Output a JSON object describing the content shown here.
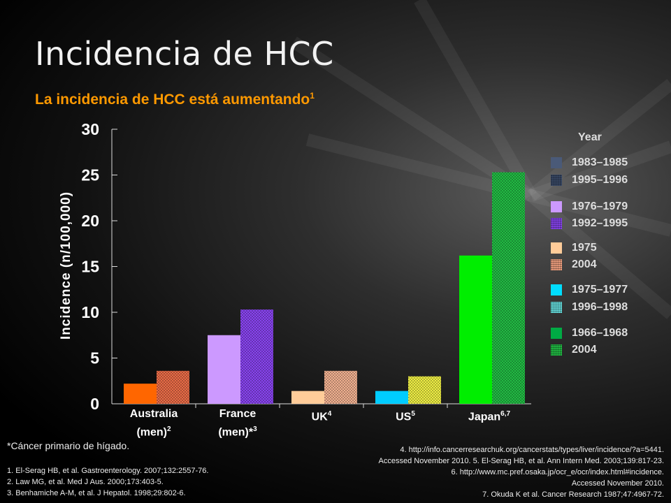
{
  "title": "Incidencia de HCC",
  "subtitle": "La incidencia de HCC está aumentando",
  "subtitle_sup": "1",
  "chart_data": {
    "type": "bar",
    "ylabel": "Incidence (n/100,000)",
    "ylim": [
      0,
      30
    ],
    "yticks": [
      0,
      5,
      10,
      15,
      20,
      25,
      30
    ],
    "categories": [
      {
        "line1": "Australia",
        "line2": "(men)",
        "sup": "2"
      },
      {
        "line1": "France",
        "line2": "(men)*",
        "sup": "3"
      },
      {
        "line1": "UK",
        "line2": "",
        "sup": "4"
      },
      {
        "line1": "US",
        "line2": "",
        "sup": "5"
      },
      {
        "line1": "Japan",
        "line2": "",
        "sup": "6,7"
      }
    ],
    "bars": [
      {
        "category": "Australia (men)",
        "period": "1983–1985",
        "value": 2.2,
        "color": "#ff6600",
        "pattern": "solid"
      },
      {
        "category": "Australia (men)",
        "period": "1995–1996",
        "value": 3.6,
        "color": "#e86b47",
        "pattern": "dotted"
      },
      {
        "category": "France (men)",
        "period": "1976–1979",
        "value": 7.5,
        "color": "#cc99ff",
        "pattern": "solid"
      },
      {
        "category": "France (men)",
        "period": "1992–1995",
        "value": 10.3,
        "color": "#8844ee",
        "pattern": "dotted"
      },
      {
        "category": "UK",
        "period": "1975",
        "value": 1.4,
        "color": "#ffcc99",
        "pattern": "solid"
      },
      {
        "category": "UK",
        "period": "2004",
        "value": 3.6,
        "color": "#f0b090",
        "pattern": "dotted"
      },
      {
        "category": "US",
        "period": "1975–1977",
        "value": 1.4,
        "color": "#00ccff",
        "pattern": "solid"
      },
      {
        "category": "US",
        "period": "1996–1998",
        "value": 3.0,
        "color": "#eeee44",
        "pattern": "dotted"
      },
      {
        "category": "Japan",
        "period": "1966–1968",
        "value": 16.2,
        "color": "#00ee00",
        "pattern": "solid"
      },
      {
        "category": "Japan",
        "period": "2004",
        "value": 25.3,
        "color": "#22bb44",
        "pattern": "dotted"
      }
    ],
    "legend_title": "Year",
    "legend": [
      {
        "label": "1983–1985",
        "color": "#4a5a78",
        "pattern": "solid"
      },
      {
        "label": "1995–1996",
        "color": "#3a4a68",
        "pattern": "dotted"
      },
      {
        "label": "1976–1979",
        "color": "#cc99ff",
        "pattern": "solid"
      },
      {
        "label": "1992–1995",
        "color": "#8844ee",
        "pattern": "dotted"
      },
      {
        "label": "1975",
        "color": "#ffcc99",
        "pattern": "solid"
      },
      {
        "label": "2004",
        "color": "#f0a080",
        "pattern": "dotted"
      },
      {
        "label": "1975–1977",
        "color": "#00ddff",
        "pattern": "solid"
      },
      {
        "label": "1996–1998",
        "color": "#66dddd",
        "pattern": "dotted"
      },
      {
        "label": "1966–1968",
        "color": "#00aa44",
        "pattern": "solid"
      },
      {
        "label": "2004",
        "color": "#22bb44",
        "pattern": "dotted"
      }
    ]
  },
  "footnote": "*Cáncer primario de hígado.",
  "references_left": [
    "1. El-Serag HB, et al. Gastroenterology. 2007;132:2557-76.",
    "2. Law MG, et al. Med J Aus. 2000;173:403-5.",
    "3. Benhamiche A-M, et al. J Hepatol. 1998;29:802-6."
  ],
  "references_right": [
    "4. http://info.cancerresearchuk.org/cancerstats/types/liver/incidence/?a=5441.",
    "Accessed November 2010. 5. El-Serag HB, et al. Ann Intern Med. 2003;139:817-23.",
    "6. http://www.mc.pref.osaka.jp/ocr_e/ocr/index.html#incidence.",
    "Accessed November 2010.",
    "7. Okuda K et al. Cancer Research 1987;47:4967-72."
  ]
}
